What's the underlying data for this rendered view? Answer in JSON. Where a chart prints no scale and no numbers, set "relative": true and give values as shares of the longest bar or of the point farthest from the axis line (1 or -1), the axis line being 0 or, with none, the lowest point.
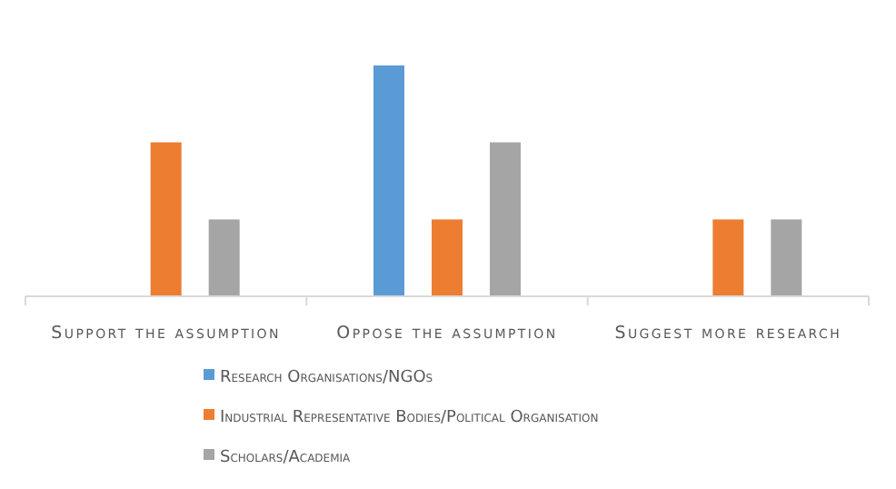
{
  "chart_data": {
    "type": "bar",
    "relative": true,
    "categories": [
      "Support the assumption",
      "Oppose the assumption",
      "Suggest more research"
    ],
    "series": [
      {
        "name": "Research Organisations/NGOs",
        "color": "#5b9bd5",
        "values": [
          0,
          1,
          0
        ]
      },
      {
        "name": "Industrial Representative Bodies/Political Organisation",
        "color": "#ed7d31",
        "values": [
          0.667,
          0.333,
          0.333
        ]
      },
      {
        "name": "Scholars/Academia",
        "color": "#a5a5a5",
        "values": [
          0.333,
          0.667,
          0.333
        ]
      }
    ],
    "legend": "bottom",
    "grid": false
  }
}
